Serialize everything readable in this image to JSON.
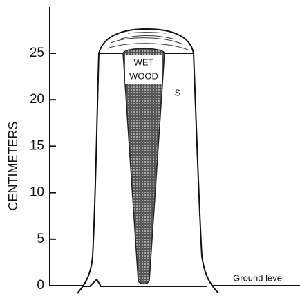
{
  "axis": {
    "label": "CENTIMETERS",
    "ticks": [
      0,
      5,
      10,
      15,
      20,
      25
    ]
  },
  "labels": {
    "wet_wood": [
      "WET",
      "WOOD"
    ],
    "sapwood": "S",
    "ground": "Ground level"
  }
}
